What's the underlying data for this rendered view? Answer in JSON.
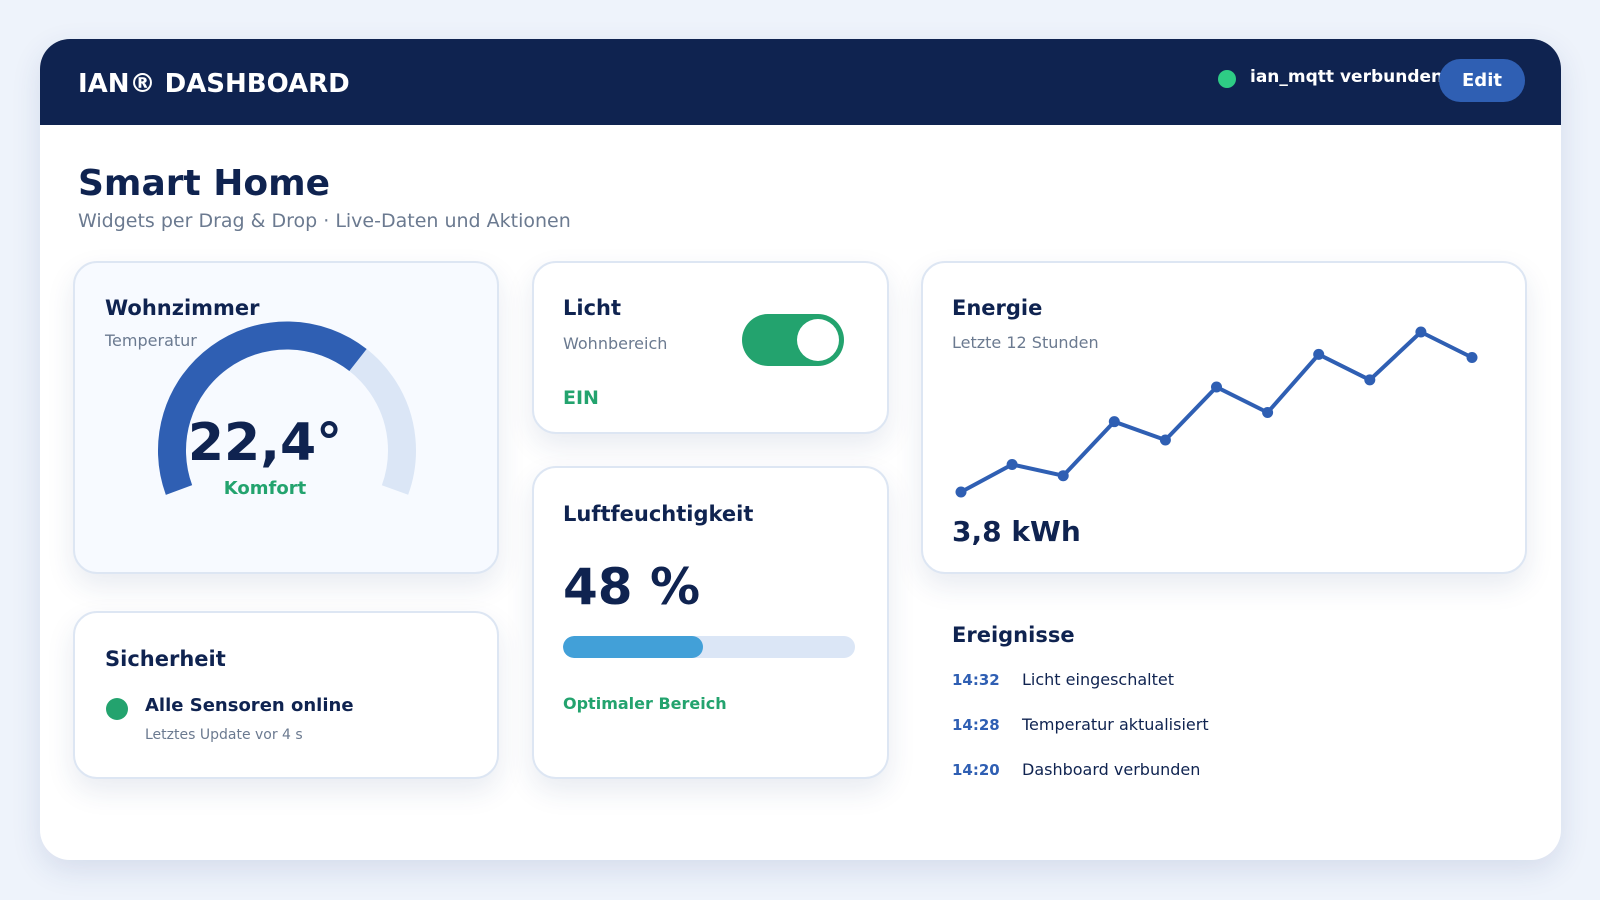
{
  "header": {
    "title": "IAN® DASHBOARD",
    "status": "ian_mqtt verbunden",
    "button": "Edit"
  },
  "page": {
    "title": "Smart Home",
    "subtitle": "Widgets per Drag & Drop · Live-Daten und Aktionen"
  },
  "widgets": {
    "temperature": {
      "title": "Wohnzimmer",
      "subtitle": "Temperatur",
      "value": "22,4°",
      "state": "Komfort"
    },
    "light": {
      "title": "Licht",
      "subtitle": "Wohnbereich",
      "state": "EIN",
      "on": true
    },
    "humidity": {
      "title": "Luftfeuchtigkeit",
      "value": {
        "value": 48,
        "label": "48 %"
      },
      "state": "Optimaler Bereich"
    },
    "security": {
      "title": "Sicherheit",
      "status": "Alle Sensoren online",
      "detail": "Letztes Update vor 4 s"
    },
    "energy": {
      "title": "Energie",
      "subtitle": "Letzte 12 Stunden",
      "value": "3,8 kWh",
      "trend": [
        0,
        27,
        16,
        69,
        51,
        103,
        78,
        135,
        110,
        157,
        132
      ]
    }
  },
  "events": {
    "title": "Ereignisse",
    "items": [
      {
        "time": "14:32",
        "text": "Licht eingeschaltet"
      },
      {
        "time": "14:28",
        "text": "Temperatur aktualisiert"
      },
      {
        "time": "14:20",
        "text": "Dashboard verbunden"
      }
    ]
  }
}
